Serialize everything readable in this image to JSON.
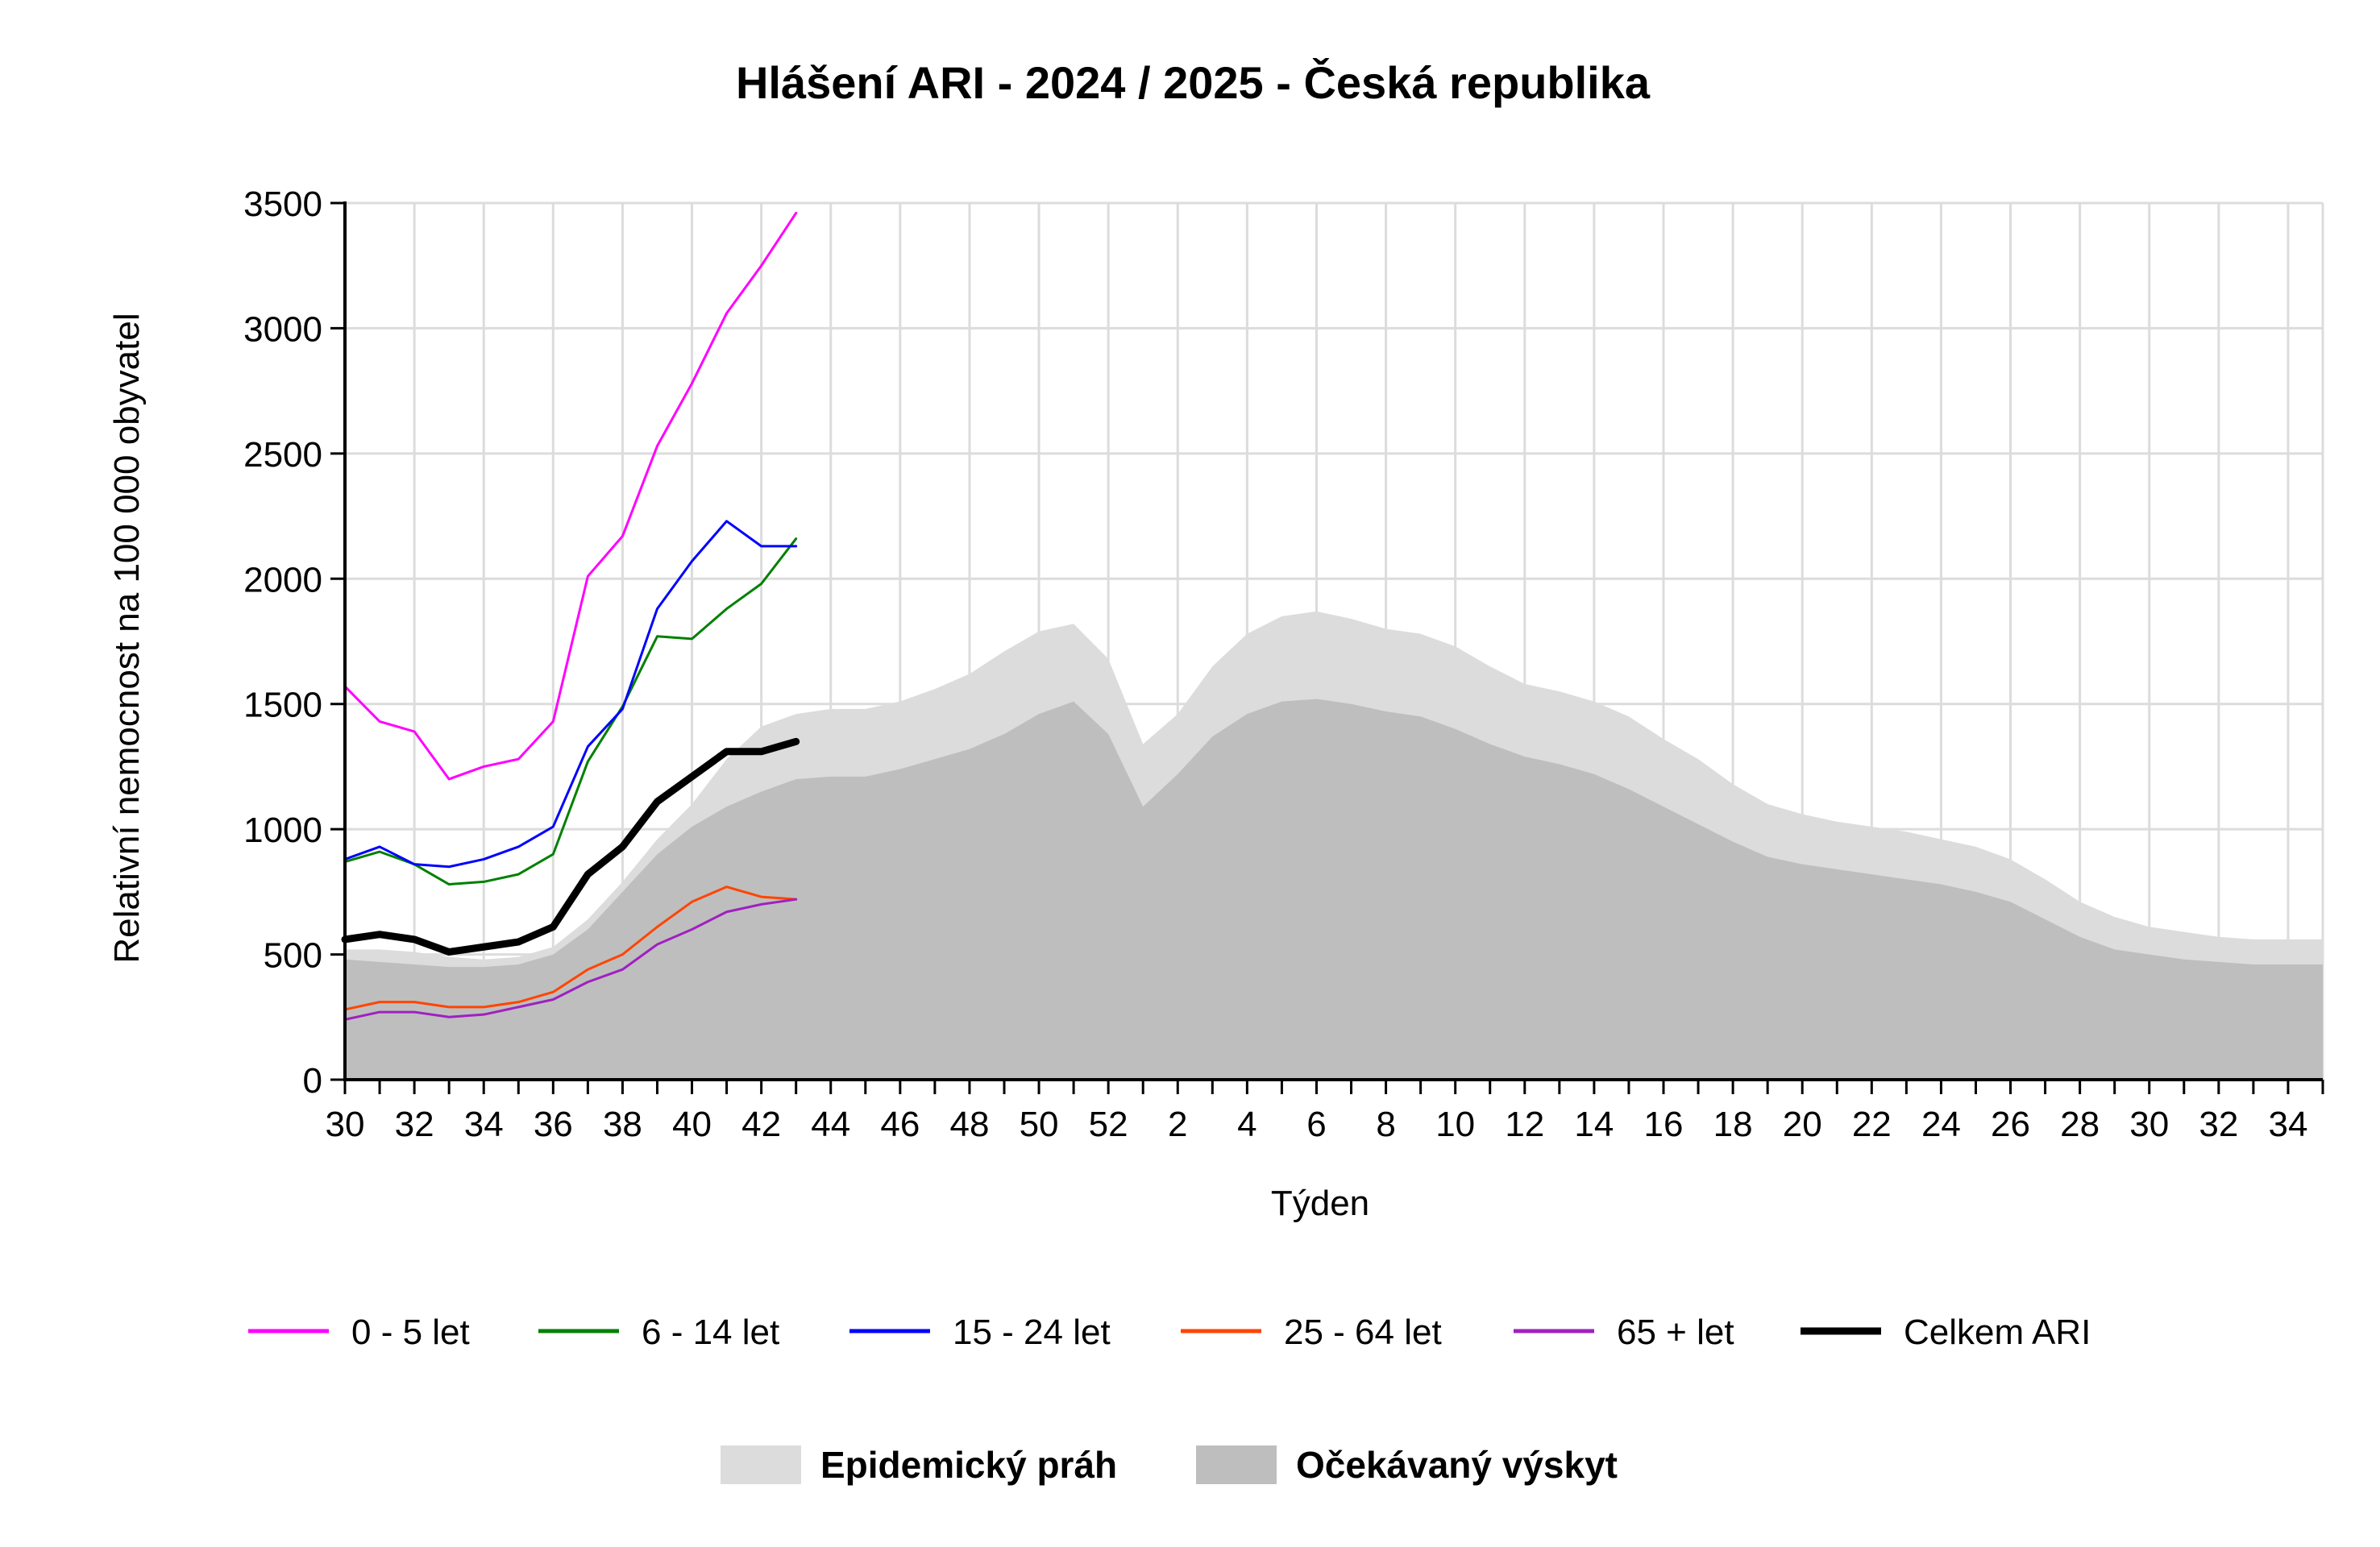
{
  "chart_data": {
    "type": "line",
    "title": "Hlášení ARI - 2024 / 2025 - Česká republika",
    "xlabel": "Týden",
    "ylabel": "Relativní nemocnost na 100 000 obyvatel",
    "ylim": [
      0,
      3500
    ],
    "yticks": [
      0,
      500,
      1000,
      1500,
      2000,
      2500,
      3000,
      3500
    ],
    "weeks": [
      30,
      31,
      32,
      33,
      34,
      35,
      36,
      37,
      38,
      39,
      40,
      41,
      42,
      43,
      44,
      45,
      46,
      47,
      48,
      49,
      50,
      51,
      52,
      1,
      2,
      3,
      4,
      5,
      6,
      7,
      8,
      9,
      10,
      11,
      12,
      13,
      14,
      15,
      16,
      17,
      18,
      19,
      20,
      21,
      22,
      23,
      24,
      25,
      26,
      27,
      28,
      29,
      30,
      31,
      32,
      33,
      34,
      35
    ],
    "xtick_labels": [
      "30",
      "32",
      "34",
      "36",
      "38",
      "40",
      "42",
      "44",
      "46",
      "48",
      "50",
      "52",
      "2",
      "4",
      "6",
      "8",
      "10",
      "12",
      "14",
      "16",
      "18",
      "20",
      "22",
      "24",
      "26",
      "28",
      "30",
      "32",
      "34"
    ],
    "grid": true,
    "series": [
      {
        "name": "0 - 5 let",
        "color": "#ff00ff",
        "width": 3,
        "values": [
          1570,
          1430,
          1390,
          1200,
          1250,
          1280,
          1430,
          2010,
          2170,
          2530,
          2780,
          3060,
          3250,
          3460
        ]
      },
      {
        "name": "6 - 14 let",
        "color": "#008000",
        "width": 3,
        "values": [
          870,
          910,
          860,
          780,
          790,
          820,
          900,
          1270,
          1490,
          1770,
          1760,
          1880,
          1980,
          2160
        ]
      },
      {
        "name": "15 - 24 let",
        "color": "#0000ff",
        "width": 3,
        "values": [
          880,
          930,
          860,
          850,
          880,
          930,
          1010,
          1330,
          1480,
          1880,
          2070,
          2230,
          2130,
          2130
        ]
      },
      {
        "name": "25 - 64 let",
        "color": "#ff4500",
        "width": 3,
        "values": [
          280,
          310,
          310,
          290,
          290,
          310,
          350,
          440,
          500,
          610,
          710,
          770,
          730,
          720
        ]
      },
      {
        "name": "65 + let",
        "color": "#a020c0",
        "width": 3,
        "values": [
          240,
          270,
          270,
          250,
          260,
          290,
          320,
          390,
          440,
          540,
          600,
          670,
          700,
          720
        ]
      },
      {
        "name": "Celkem ARI",
        "color": "#000000",
        "width": 9,
        "values": [
          560,
          580,
          560,
          510,
          530,
          550,
          610,
          820,
          930,
          1110,
          1210,
          1310,
          1310,
          1350
        ]
      }
    ],
    "areas": [
      {
        "name": "Epidemický práh",
        "color": "#dcdcdc",
        "values": [
          520,
          520,
          510,
          490,
          480,
          490,
          530,
          640,
          790,
          960,
          1100,
          1280,
          1410,
          1460,
          1480,
          1480,
          1510,
          1560,
          1620,
          1710,
          1790,
          1820,
          1680,
          1340,
          1460,
          1650,
          1780,
          1850,
          1870,
          1840,
          1800,
          1780,
          1730,
          1650,
          1580,
          1550,
          1510,
          1450,
          1360,
          1280,
          1180,
          1100,
          1060,
          1030,
          1010,
          990,
          960,
          930,
          880,
          800,
          710,
          650,
          610,
          590,
          570,
          560,
          560,
          560
        ]
      },
      {
        "name": "Očekávaný výskyt",
        "color": "#bebebe",
        "values": [
          480,
          470,
          460,
          450,
          450,
          460,
          500,
          600,
          750,
          900,
          1010,
          1090,
          1150,
          1200,
          1210,
          1210,
          1240,
          1280,
          1320,
          1380,
          1460,
          1510,
          1380,
          1090,
          1220,
          1370,
          1460,
          1510,
          1520,
          1500,
          1470,
          1450,
          1400,
          1340,
          1290,
          1260,
          1220,
          1160,
          1090,
          1020,
          950,
          890,
          860,
          840,
          820,
          800,
          780,
          750,
          710,
          640,
          570,
          520,
          500,
          480,
          470,
          460,
          460,
          460
        ]
      }
    ]
  }
}
